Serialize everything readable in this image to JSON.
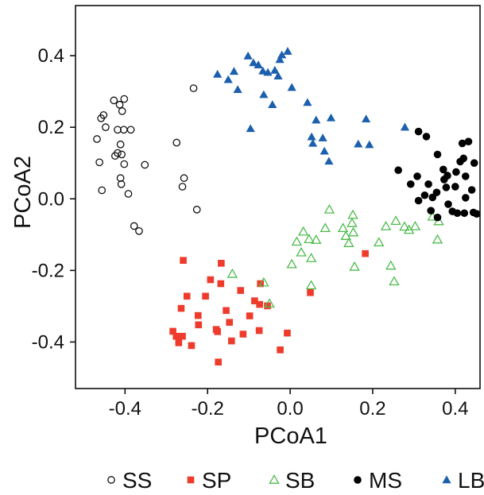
{
  "chart_data": {
    "type": "scatter",
    "title": "",
    "xlabel": "PCoA1",
    "ylabel": "PCoA2",
    "xlim": [
      -0.52,
      0.46
    ],
    "ylim": [
      -0.53,
      0.54
    ],
    "xticks": [
      -0.4,
      -0.2,
      0.0,
      0.2,
      0.4
    ],
    "xtick_labels": [
      "-0.4",
      "-0.2",
      "0.0",
      "0.2",
      "0.4"
    ],
    "yticks": [
      -0.4,
      -0.2,
      0.0,
      0.2,
      0.4
    ],
    "ytick_labels": [
      "-0.4",
      "-0.2",
      "0.0",
      "0.2",
      "0.4"
    ],
    "grid": false,
    "legend_position": "bottom",
    "series": [
      {
        "name": "SS",
        "marker": "circle-open",
        "color": "#111111",
        "points": [
          [
            -0.468,
            0.167
          ],
          [
            -0.458,
            0.225
          ],
          [
            -0.452,
            0.234
          ],
          [
            -0.447,
            0.2
          ],
          [
            -0.462,
            0.102
          ],
          [
            -0.456,
            0.024
          ],
          [
            -0.427,
            0.275
          ],
          [
            -0.413,
            0.263
          ],
          [
            -0.407,
            0.245
          ],
          [
            -0.402,
            0.279
          ],
          [
            -0.418,
            0.193
          ],
          [
            -0.403,
            0.193
          ],
          [
            -0.386,
            0.193
          ],
          [
            -0.411,
            0.152
          ],
          [
            -0.418,
            0.128
          ],
          [
            -0.408,
            0.124
          ],
          [
            -0.424,
            0.12
          ],
          [
            -0.402,
            0.097
          ],
          [
            -0.411,
            0.058
          ],
          [
            -0.409,
            0.041
          ],
          [
            -0.392,
            0.014
          ],
          [
            -0.352,
            0.095
          ],
          [
            -0.378,
            -0.076
          ],
          [
            -0.366,
            -0.09
          ],
          [
            -0.234,
            0.309
          ],
          [
            -0.275,
            0.157
          ],
          [
            -0.257,
            0.058
          ],
          [
            -0.261,
            0.034
          ],
          [
            -0.226,
            -0.03
          ]
        ]
      },
      {
        "name": "SP",
        "marker": "square",
        "color": "#ee3b2b",
        "points": [
          [
            -0.259,
            -0.172
          ],
          [
            -0.167,
            -0.18
          ],
          [
            -0.193,
            -0.226
          ],
          [
            -0.168,
            -0.237
          ],
          [
            -0.12,
            -0.256
          ],
          [
            -0.072,
            -0.237
          ],
          [
            -0.25,
            -0.272
          ],
          [
            -0.205,
            -0.272
          ],
          [
            -0.264,
            -0.306
          ],
          [
            -0.223,
            -0.326
          ],
          [
            -0.155,
            -0.312
          ],
          [
            -0.086,
            -0.285
          ],
          [
            -0.074,
            -0.295
          ],
          [
            -0.055,
            -0.299
          ],
          [
            0.049,
            -0.262
          ],
          [
            0.182,
            -0.153
          ],
          [
            -0.284,
            -0.37
          ],
          [
            -0.276,
            -0.384
          ],
          [
            -0.27,
            -0.402
          ],
          [
            -0.239,
            -0.41
          ],
          [
            -0.261,
            -0.384
          ],
          [
            -0.222,
            -0.352
          ],
          [
            -0.179,
            -0.365
          ],
          [
            -0.176,
            -0.371
          ],
          [
            -0.147,
            -0.345
          ],
          [
            -0.142,
            -0.397
          ],
          [
            -0.114,
            -0.378
          ],
          [
            -0.075,
            -0.368
          ],
          [
            -0.098,
            -0.327
          ],
          [
            -0.007,
            -0.375
          ],
          [
            -0.024,
            -0.422
          ],
          [
            -0.174,
            -0.456
          ]
        ]
      },
      {
        "name": "SB",
        "marker": "triangle-open",
        "color": "#4dbb4d",
        "points": [
          [
            -0.14,
            -0.21
          ],
          [
            -0.064,
            -0.234
          ],
          [
            -0.05,
            -0.293
          ],
          [
            0.032,
            -0.092
          ],
          [
            0.046,
            -0.113
          ],
          [
            0.016,
            -0.12
          ],
          [
            0.063,
            -0.115
          ],
          [
            0.027,
            -0.15
          ],
          [
            0.004,
            -0.183
          ],
          [
            0.051,
            -0.166
          ],
          [
            0.051,
            -0.242
          ],
          [
            0.095,
            -0.03
          ],
          [
            0.085,
            -0.082
          ],
          [
            0.128,
            -0.082
          ],
          [
            0.152,
            -0.045
          ],
          [
            0.15,
            -0.068
          ],
          [
            0.135,
            -0.104
          ],
          [
            0.142,
            -0.124
          ],
          [
            0.153,
            -0.094
          ],
          [
            0.215,
            -0.122
          ],
          [
            0.232,
            -0.077
          ],
          [
            0.256,
            -0.062
          ],
          [
            0.156,
            -0.19
          ],
          [
            0.244,
            -0.187
          ],
          [
            0.252,
            -0.231
          ],
          [
            0.277,
            -0.078
          ],
          [
            0.288,
            -0.087
          ],
          [
            0.303,
            -0.077
          ],
          [
            0.345,
            -0.05
          ],
          [
            0.36,
            -0.063
          ],
          [
            0.357,
            -0.114
          ]
        ]
      },
      {
        "name": "MS",
        "marker": "circle",
        "color": "#000000",
        "points": [
          [
            0.311,
            0.188
          ],
          [
            0.33,
            0.174
          ],
          [
            0.357,
            0.124
          ],
          [
            0.262,
            0.08
          ],
          [
            0.308,
            0.063
          ],
          [
            0.292,
            0.041
          ],
          [
            0.335,
            0.041
          ],
          [
            0.355,
            0.018
          ],
          [
            0.326,
            0.01
          ],
          [
            0.345,
            0.004
          ],
          [
            0.371,
            0.082
          ],
          [
            0.381,
            0.065
          ],
          [
            0.373,
            0.054
          ],
          [
            0.378,
            0.032
          ],
          [
            0.4,
            0.034
          ],
          [
            0.402,
            0.075
          ],
          [
            0.412,
            0.104
          ],
          [
            0.417,
            0.155
          ],
          [
            0.432,
            0.16
          ],
          [
            0.425,
            0.063
          ],
          [
            0.425,
            0.003
          ],
          [
            0.44,
            0.025
          ],
          [
            0.311,
            -0.005
          ],
          [
            0.341,
            -0.033
          ],
          [
            0.357,
            -0.052
          ],
          [
            0.383,
            -0.015
          ],
          [
            0.393,
            -0.035
          ],
          [
            0.405,
            -0.04
          ],
          [
            0.422,
            -0.04
          ],
          [
            0.444,
            -0.038
          ],
          [
            0.452,
            -0.042
          ],
          [
            0.42,
            0.113
          ],
          [
            0.446,
            0.1
          ]
        ]
      },
      {
        "name": "LB",
        "marker": "triangle",
        "color": "#1b5fad",
        "points": [
          [
            -0.176,
            0.348
          ],
          [
            -0.136,
            0.356
          ],
          [
            -0.15,
            0.333
          ],
          [
            -0.127,
            0.305
          ],
          [
            -0.102,
            0.399
          ],
          [
            -0.077,
            0.374
          ],
          [
            -0.089,
            0.38
          ],
          [
            -0.066,
            0.357
          ],
          [
            -0.054,
            0.353
          ],
          [
            -0.037,
            0.359
          ],
          [
            -0.025,
            0.389
          ],
          [
            -0.02,
            0.402
          ],
          [
            -0.006,
            0.412
          ],
          [
            -0.029,
            0.343
          ],
          [
            -0.064,
            0.291
          ],
          [
            -0.043,
            0.263
          ],
          [
            -0.096,
            0.196
          ],
          [
            0.004,
            0.311
          ],
          [
            0.042,
            0.269
          ],
          [
            0.063,
            0.22
          ],
          [
            0.099,
            0.226
          ],
          [
            0.052,
            0.173
          ],
          [
            0.055,
            0.155
          ],
          [
            0.079,
            0.17
          ],
          [
            0.083,
            0.133
          ],
          [
            0.094,
            0.105
          ],
          [
            0.165,
            0.153
          ],
          [
            0.184,
            0.223
          ],
          [
            0.192,
            0.151
          ],
          [
            0.278,
            0.2
          ]
        ]
      }
    ]
  }
}
